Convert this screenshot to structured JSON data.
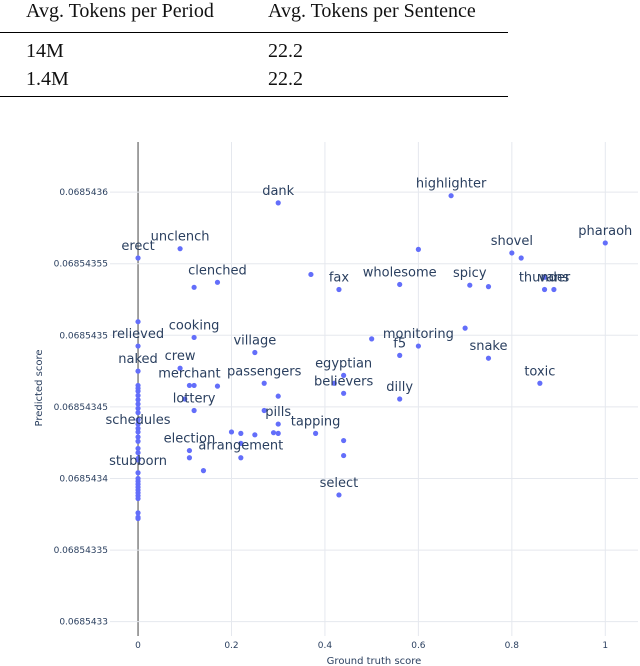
{
  "table": {
    "headers": [
      "Avg. Tokens per Period",
      "Avg. Tokens per Sentence"
    ],
    "rows": [
      [
        "14M",
        "22.2"
      ],
      [
        "1.4M",
        "22.2"
      ]
    ]
  },
  "chart_data": {
    "type": "scatter",
    "xlabel": "Ground truth score",
    "ylabel": "Predicted score",
    "xlim": [
      -0.06,
      1.07
    ],
    "ylim": [
      0.06854329,
      0.068543635
    ],
    "xticks": [
      0,
      0.2,
      0.4,
      0.6,
      0.8,
      1
    ],
    "xtick_labels": [
      "0",
      "0.2",
      "0.4",
      "0.6",
      "0.8",
      "1"
    ],
    "yticks": [
      0.0685433,
      0.06854335,
      0.0685434,
      0.06854345,
      0.0685435,
      0.06854355,
      0.0685436
    ],
    "ytick_labels": [
      "0.0685433",
      "0.06854335",
      "0.0685434",
      "0.06854345",
      "0.0685435",
      "0.06854355",
      "0.0685436"
    ],
    "grid": true,
    "marker_color": "#636efa",
    "points": [
      {
        "x": 0.3,
        "y": 0.0685435925,
        "label": "dank"
      },
      {
        "x": 0.67,
        "y": 0.0685435975,
        "label": "highlighter"
      },
      {
        "x": 1.0,
        "y": 0.0685435645,
        "label": "pharaoh"
      },
      {
        "x": 0.0,
        "y": 0.068543554,
        "label": "erect"
      },
      {
        "x": 0.09,
        "y": 0.0685435605,
        "label": "unclench"
      },
      {
        "x": 0.6,
        "y": 0.06854356,
        "label": ""
      },
      {
        "x": 0.8,
        "y": 0.0685435575,
        "label": "shovel"
      },
      {
        "x": 0.82,
        "y": 0.068543554,
        "label": ""
      },
      {
        "x": 0.37,
        "y": 0.0685435425,
        "label": ""
      },
      {
        "x": 0.17,
        "y": 0.068543537,
        "label": "clenched"
      },
      {
        "x": 0.12,
        "y": 0.0685435335,
        "label": ""
      },
      {
        "x": 0.43,
        "y": 0.068543532,
        "label": "fax"
      },
      {
        "x": 0.56,
        "y": 0.0685435355,
        "label": "wholesome"
      },
      {
        "x": 0.71,
        "y": 0.068543535,
        "label": "spicy"
      },
      {
        "x": 0.75,
        "y": 0.068543534,
        "label": ""
      },
      {
        "x": 0.87,
        "y": 0.0685435405,
        "label": ""
      },
      {
        "x": 0.89,
        "y": 0.068543532,
        "label": "vans"
      },
      {
        "x": 0.87,
        "y": 0.068543532,
        "label": "thunder"
      },
      {
        "x": 0.0,
        "y": 0.0685435095,
        "label": ""
      },
      {
        "x": 0.12,
        "y": 0.0685434985,
        "label": "cooking"
      },
      {
        "x": 0.5,
        "y": 0.0685434975,
        "label": ""
      },
      {
        "x": 0.7,
        "y": 0.068543505,
        "label": ""
      },
      {
        "x": 0.6,
        "y": 0.0685434925,
        "label": "monitoring"
      },
      {
        "x": 0.0,
        "y": 0.0685434925,
        "label": "relieved"
      },
      {
        "x": 0.25,
        "y": 0.068543488,
        "label": "village"
      },
      {
        "x": 0.56,
        "y": 0.068543486,
        "label": "f5"
      },
      {
        "x": 0.75,
        "y": 0.068543484,
        "label": "snake"
      },
      {
        "x": 0.09,
        "y": 0.068543477,
        "label": "crew"
      },
      {
        "x": 0.0,
        "y": 0.068543475,
        "label": "naked"
      },
      {
        "x": 0.44,
        "y": 0.068543472,
        "label": "egyptian"
      },
      {
        "x": 0.42,
        "y": 0.0685434665,
        "label": ""
      },
      {
        "x": 0.11,
        "y": 0.068543465,
        "label": "merchant"
      },
      {
        "x": 0.12,
        "y": 0.068543465,
        "label": ""
      },
      {
        "x": 0.17,
        "y": 0.0685434645,
        "label": ""
      },
      {
        "x": 0.27,
        "y": 0.0685434665,
        "label": "passengers"
      },
      {
        "x": 0.44,
        "y": 0.0685434595,
        "label": "believers"
      },
      {
        "x": 0.86,
        "y": 0.0685434665,
        "label": "toxic"
      },
      {
        "x": 0.3,
        "y": 0.0685434575,
        "label": ""
      },
      {
        "x": 0.56,
        "y": 0.0685434555,
        "label": "dilly"
      },
      {
        "x": 0.1,
        "y": 0.0685434555,
        "label": ""
      },
      {
        "x": 0.12,
        "y": 0.0685434475,
        "label": "lottery"
      },
      {
        "x": 0.27,
        "y": 0.0685434475,
        "label": ""
      },
      {
        "x": 0.3,
        "y": 0.068543438,
        "label": "pills"
      },
      {
        "x": 0.22,
        "y": 0.0685434315,
        "label": ""
      },
      {
        "x": 0.2,
        "y": 0.0685434325,
        "label": ""
      },
      {
        "x": 0.25,
        "y": 0.0685434305,
        "label": ""
      },
      {
        "x": 0.29,
        "y": 0.068543432,
        "label": ""
      },
      {
        "x": 0.3,
        "y": 0.0685434315,
        "label": ""
      },
      {
        "x": 0.38,
        "y": 0.0685434315,
        "label": "tapping"
      },
      {
        "x": 0.44,
        "y": 0.0685434265,
        "label": ""
      },
      {
        "x": 0.0,
        "y": 0.0685434325,
        "label": "schedules"
      },
      {
        "x": 0.22,
        "y": 0.0685434245,
        "label": ""
      },
      {
        "x": 0.11,
        "y": 0.0685434195,
        "label": "election"
      },
      {
        "x": 0.44,
        "y": 0.068543416,
        "label": ""
      },
      {
        "x": 0.11,
        "y": 0.0685434145,
        "label": ""
      },
      {
        "x": 0.22,
        "y": 0.0685434145,
        "label": "arrangement"
      },
      {
        "x": 0.14,
        "y": 0.0685434055,
        "label": ""
      },
      {
        "x": 0.0,
        "y": 0.068543404,
        "label": "stubborn"
      },
      {
        "x": 0.43,
        "y": 0.0685433885,
        "label": "select"
      },
      {
        "x": 0.0,
        "y": 0.068543465,
        "label": ""
      },
      {
        "x": 0.0,
        "y": 0.068543463,
        "label": ""
      },
      {
        "x": 0.0,
        "y": 0.068543461,
        "label": ""
      },
      {
        "x": 0.0,
        "y": 0.068543458,
        "label": ""
      },
      {
        "x": 0.0,
        "y": 0.068543455,
        "label": ""
      },
      {
        "x": 0.0,
        "y": 0.068543452,
        "label": ""
      },
      {
        "x": 0.0,
        "y": 0.068543449,
        "label": ""
      },
      {
        "x": 0.0,
        "y": 0.068543446,
        "label": ""
      },
      {
        "x": 0.0,
        "y": 0.068543441,
        "label": ""
      },
      {
        "x": 0.0,
        "y": 0.068543438,
        "label": ""
      },
      {
        "x": 0.0,
        "y": 0.068543435,
        "label": ""
      },
      {
        "x": 0.0,
        "y": 0.068543429,
        "label": ""
      },
      {
        "x": 0.0,
        "y": 0.068543426,
        "label": ""
      },
      {
        "x": 0.0,
        "y": 0.068543421,
        "label": ""
      },
      {
        "x": 0.0,
        "y": 0.068543418,
        "label": ""
      },
      {
        "x": 0.0,
        "y": 0.068543414,
        "label": ""
      },
      {
        "x": 0.0,
        "y": 0.068543413,
        "label": ""
      },
      {
        "x": 0.0,
        "y": 0.0685434,
        "label": ""
      },
      {
        "x": 0.0,
        "y": 0.068543398,
        "label": ""
      },
      {
        "x": 0.0,
        "y": 0.068543396,
        "label": ""
      },
      {
        "x": 0.0,
        "y": 0.068543394,
        "label": ""
      },
      {
        "x": 0.0,
        "y": 0.068543392,
        "label": ""
      },
      {
        "x": 0.0,
        "y": 0.06854339,
        "label": ""
      },
      {
        "x": 0.0,
        "y": 0.068543388,
        "label": ""
      },
      {
        "x": 0.0,
        "y": 0.068543386,
        "label": ""
      },
      {
        "x": 0.0,
        "y": 0.068543376,
        "label": ""
      },
      {
        "x": 0.0,
        "y": 0.068543373,
        "label": ""
      },
      {
        "x": 0.0,
        "y": 0.068543372,
        "label": ""
      }
    ]
  }
}
